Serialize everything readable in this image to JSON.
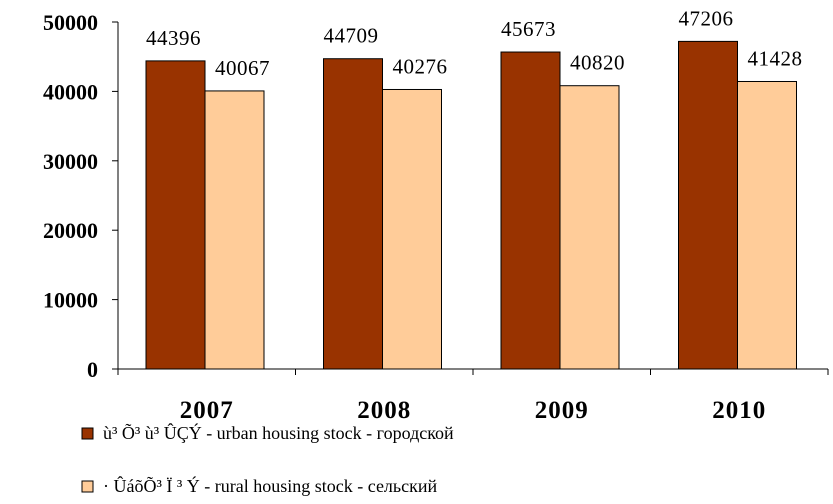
{
  "chart_data": {
    "type": "bar",
    "categories": [
      "2007",
      "2008",
      "2009",
      "2010"
    ],
    "series": [
      {
        "name": "ù³ Õ³ ù³ ÛÇÝ - urban housing stock - городской",
        "color": "#993300",
        "values": [
          44396,
          44709,
          45673,
          47206
        ]
      },
      {
        "name": "· ÛáõÕ³ Ï ³ Ý - rural housing stock - сельский",
        "color": "#FFCC99",
        "values": [
          40067,
          40276,
          40820,
          41428
        ]
      }
    ],
    "ylim": [
      0,
      50000
    ],
    "yticks": [
      "0",
      "10000",
      "20000",
      "30000",
      "40000",
      "50000"
    ],
    "grid": false,
    "legend_position": "bottom-left"
  }
}
